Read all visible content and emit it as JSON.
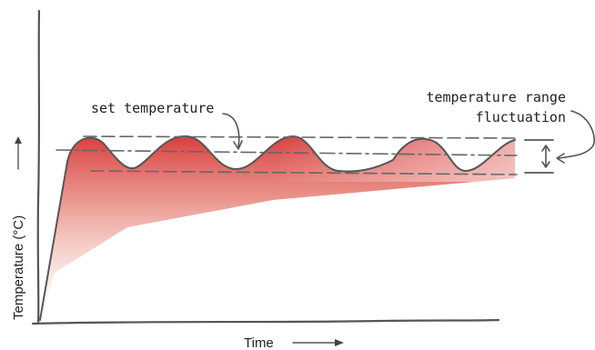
{
  "diagram": {
    "labels": {
      "set_temperature": "set temperature",
      "range_line1": "temperature range",
      "range_line2": "fluctuation",
      "y_axis": "Temperature (°C)",
      "x_axis": "Time"
    },
    "colors": {
      "curve_fill": "#dc3a3a",
      "ink": "#444444"
    },
    "icons": [
      "arrow-right-icon",
      "arrow-up-icon",
      "curved-arrow-icon",
      "double-arrow-icon"
    ]
  }
}
